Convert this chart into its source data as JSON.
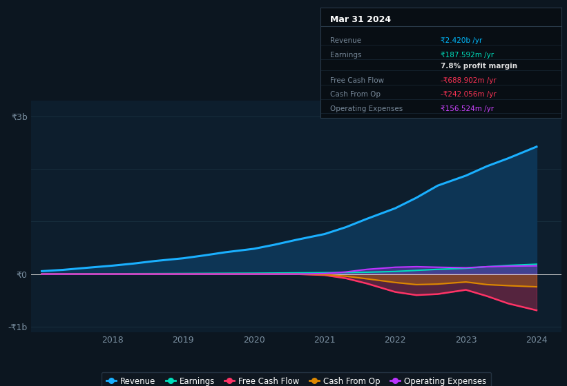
{
  "bg_color": "#0c1620",
  "plot_bg_color": "#0d1e2d",
  "grid_color": "#1a3040",
  "axis_label_color": "#7a8fa0",
  "zero_line_color": "#cccccc",
  "title_box": {
    "date": "Mar 31 2024",
    "rows": [
      {
        "label": "Revenue",
        "value": "₹2.420b /yr",
        "value_color": "#00bbff",
        "bold_value": true
      },
      {
        "label": "Earnings",
        "value": "₹187.592m /yr",
        "value_color": "#00ddbb",
        "bold_value": true
      },
      {
        "label": "",
        "value": "7.8% profit margin",
        "value_color": "#dddddd",
        "bold_value": false
      },
      {
        "label": "Free Cash Flow",
        "value": "-₹688.902m /yr",
        "value_color": "#ff3355",
        "bold_value": true
      },
      {
        "label": "Cash From Op",
        "value": "-₹242.056m /yr",
        "value_color": "#ff3355",
        "bold_value": true
      },
      {
        "label": "Operating Expenses",
        "value": "₹156.524m /yr",
        "value_color": "#cc44ff",
        "bold_value": true
      }
    ],
    "box_bg": "#080e14",
    "border_color": "#2a3a4a",
    "label_color": "#778899",
    "title_color": "#ffffff"
  },
  "years": [
    2017.0,
    2017.3,
    2017.6,
    2018.0,
    2018.3,
    2018.6,
    2019.0,
    2019.3,
    2019.6,
    2020.0,
    2020.3,
    2020.6,
    2021.0,
    2021.3,
    2021.6,
    2022.0,
    2022.3,
    2022.6,
    2023.0,
    2023.3,
    2023.6,
    2024.0
  ],
  "revenue": [
    55,
    80,
    115,
    160,
    200,
    248,
    300,
    355,
    415,
    480,
    560,
    650,
    760,
    890,
    1050,
    1250,
    1450,
    1680,
    1870,
    2050,
    2200,
    2420
  ],
  "earnings": [
    3,
    4,
    5,
    6,
    8,
    9,
    11,
    13,
    15,
    17,
    20,
    23,
    27,
    30,
    35,
    50,
    70,
    90,
    110,
    140,
    165,
    187
  ],
  "fcf": [
    0,
    0,
    0,
    0,
    0,
    0,
    0,
    0,
    0,
    0,
    0,
    0,
    -20,
    -80,
    -180,
    -340,
    -400,
    -380,
    -300,
    -420,
    -560,
    -689
  ],
  "cash_from_op": [
    0,
    0,
    0,
    0,
    0,
    0,
    0,
    0,
    0,
    0,
    0,
    0,
    -10,
    -40,
    -90,
    -160,
    -200,
    -190,
    -150,
    -200,
    -220,
    -242
  ],
  "op_expenses": [
    0,
    0,
    0,
    0,
    0,
    0,
    0,
    0,
    0,
    0,
    0,
    0,
    10,
    40,
    90,
    130,
    140,
    130,
    120,
    140,
    150,
    157
  ],
  "revenue_color": "#1ab0ff",
  "revenue_fill": "#0d3555",
  "earnings_color": "#00ddbb",
  "fcf_color": "#ff3366",
  "cash_color": "#dd8800",
  "opex_color": "#bb33ff",
  "ylim": [
    -1100,
    3300
  ],
  "xticks": [
    2018,
    2019,
    2020,
    2021,
    2022,
    2023,
    2024
  ],
  "legend_items": [
    {
      "label": "Revenue",
      "color": "#1ab0ff"
    },
    {
      "label": "Earnings",
      "color": "#00ddbb"
    },
    {
      "label": "Free Cash Flow",
      "color": "#ff3366"
    },
    {
      "label": "Cash From Op",
      "color": "#dd8800"
    },
    {
      "label": "Operating Expenses",
      "color": "#bb33ff"
    }
  ]
}
